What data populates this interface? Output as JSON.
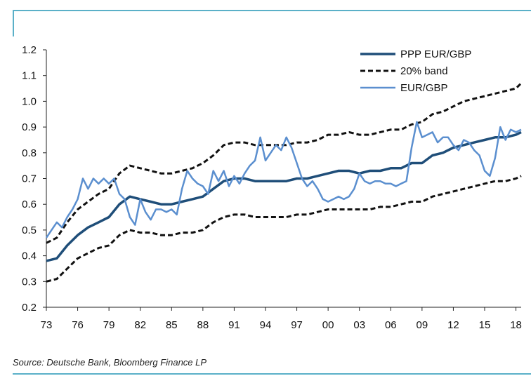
{
  "chart_data": {
    "type": "line",
    "title": "",
    "xlabel": "",
    "ylabel": "",
    "ylim": [
      0.2,
      1.2
    ],
    "xlim": [
      1973,
      2018.5
    ],
    "x_tick_labels": [
      "73",
      "76",
      "79",
      "82",
      "85",
      "88",
      "91",
      "94",
      "97",
      "00",
      "03",
      "06",
      "09",
      "12",
      "15",
      "18"
    ],
    "x_tick_values": [
      1973,
      1976,
      1979,
      1982,
      1985,
      1988,
      1991,
      1994,
      1997,
      2000,
      2003,
      2006,
      2009,
      2012,
      2015,
      2018
    ],
    "y_tick_labels": [
      "0.2",
      "0.3",
      "0.4",
      "0.5",
      "0.6",
      "0.7",
      "0.8",
      "0.9",
      "1.0",
      "1.1",
      "1.2"
    ],
    "y_tick_values": [
      0.2,
      0.3,
      0.4,
      0.5,
      0.6,
      0.7,
      0.8,
      0.9,
      1.0,
      1.1,
      1.2
    ],
    "legend_position": "top-right",
    "series": [
      {
        "name": "PPP EUR/GBP",
        "color": "#1f4e79",
        "style": "solid-thick",
        "x": [
          1973,
          1974,
          1975,
          1976,
          1977,
          1978,
          1979,
          1980,
          1981,
          1982,
          1983,
          1984,
          1985,
          1986,
          1987,
          1988,
          1989,
          1990,
          1991,
          1992,
          1993,
          1994,
          1995,
          1996,
          1997,
          1998,
          1999,
          2000,
          2001,
          2002,
          2003,
          2004,
          2005,
          2006,
          2007,
          2008,
          2009,
          2010,
          2011,
          2012,
          2013,
          2014,
          2015,
          2016,
          2017,
          2018,
          2018.5
        ],
        "values": [
          0.38,
          0.39,
          0.44,
          0.48,
          0.51,
          0.53,
          0.55,
          0.6,
          0.63,
          0.62,
          0.61,
          0.6,
          0.6,
          0.61,
          0.62,
          0.63,
          0.66,
          0.69,
          0.7,
          0.7,
          0.69,
          0.69,
          0.69,
          0.69,
          0.7,
          0.7,
          0.71,
          0.72,
          0.73,
          0.73,
          0.72,
          0.73,
          0.73,
          0.74,
          0.74,
          0.76,
          0.76,
          0.79,
          0.8,
          0.82,
          0.83,
          0.84,
          0.85,
          0.86,
          0.86,
          0.87,
          0.88
        ]
      },
      {
        "name": "20% band",
        "color": "#111111",
        "style": "dashed",
        "upper": {
          "x": [
            1973,
            1974,
            1975,
            1976,
            1977,
            1978,
            1979,
            1980,
            1981,
            1982,
            1983,
            1984,
            1985,
            1986,
            1987,
            1988,
            1989,
            1990,
            1991,
            1992,
            1993,
            1994,
            1995,
            1996,
            1997,
            1998,
            1999,
            2000,
            2001,
            2002,
            2003,
            2004,
            2005,
            2006,
            2007,
            2008,
            2009,
            2010,
            2011,
            2012,
            2013,
            2014,
            2015,
            2016,
            2017,
            2018,
            2018.5
          ],
          "values": [
            0.45,
            0.47,
            0.53,
            0.58,
            0.61,
            0.64,
            0.66,
            0.72,
            0.75,
            0.74,
            0.73,
            0.72,
            0.72,
            0.73,
            0.74,
            0.76,
            0.79,
            0.83,
            0.84,
            0.84,
            0.83,
            0.83,
            0.83,
            0.83,
            0.84,
            0.84,
            0.85,
            0.87,
            0.87,
            0.88,
            0.87,
            0.87,
            0.88,
            0.89,
            0.89,
            0.91,
            0.92,
            0.95,
            0.96,
            0.98,
            1.0,
            1.01,
            1.02,
            1.03,
            1.04,
            1.05,
            1.07
          ]
        },
        "lower": {
          "x": [
            1973,
            1974,
            1975,
            1976,
            1977,
            1978,
            1979,
            1980,
            1981,
            1982,
            1983,
            1984,
            1985,
            1986,
            1987,
            1988,
            1989,
            1990,
            1991,
            1992,
            1993,
            1994,
            1995,
            1996,
            1997,
            1998,
            1999,
            2000,
            2001,
            2002,
            2003,
            2004,
            2005,
            2006,
            2007,
            2008,
            2009,
            2010,
            2011,
            2012,
            2013,
            2014,
            2015,
            2016,
            2017,
            2018,
            2018.5
          ],
          "values": [
            0.3,
            0.31,
            0.35,
            0.39,
            0.41,
            0.43,
            0.44,
            0.48,
            0.5,
            0.49,
            0.49,
            0.48,
            0.48,
            0.49,
            0.49,
            0.5,
            0.53,
            0.55,
            0.56,
            0.56,
            0.55,
            0.55,
            0.55,
            0.55,
            0.56,
            0.56,
            0.57,
            0.58,
            0.58,
            0.58,
            0.58,
            0.58,
            0.59,
            0.59,
            0.6,
            0.61,
            0.61,
            0.63,
            0.64,
            0.65,
            0.66,
            0.67,
            0.68,
            0.69,
            0.69,
            0.7,
            0.71
          ]
        }
      },
      {
        "name": "EUR/GBP",
        "color": "#5b8fcf",
        "style": "solid",
        "x": [
          1973,
          1973.5,
          1974,
          1974.5,
          1975,
          1975.5,
          1976,
          1976.5,
          1977,
          1977.5,
          1978,
          1978.5,
          1979,
          1979.5,
          1980,
          1980.5,
          1981,
          1981.5,
          1982,
          1982.5,
          1983,
          1983.5,
          1984,
          1984.5,
          1985,
          1985.5,
          1986,
          1986.5,
          1987,
          1987.5,
          1988,
          1988.5,
          1989,
          1989.5,
          1990,
          1990.5,
          1991,
          1991.5,
          1992,
          1992.5,
          1993,
          1993.5,
          1994,
          1994.5,
          1995,
          1995.5,
          1996,
          1996.5,
          1997,
          1997.5,
          1998,
          1998.5,
          1999,
          1999.5,
          2000,
          2000.5,
          2001,
          2001.5,
          2002,
          2002.5,
          2003,
          2003.5,
          2004,
          2004.5,
          2005,
          2005.5,
          2006,
          2006.5,
          2007,
          2007.5,
          2008,
          2008.5,
          2009,
          2009.5,
          2010,
          2010.5,
          2011,
          2011.5,
          2012,
          2012.5,
          2013,
          2013.5,
          2014,
          2014.5,
          2015,
          2015.5,
          2016,
          2016.5,
          2017,
          2017.5,
          2018,
          2018.5
        ],
        "values": [
          0.47,
          0.5,
          0.53,
          0.51,
          0.55,
          0.58,
          0.62,
          0.7,
          0.66,
          0.7,
          0.68,
          0.7,
          0.68,
          0.7,
          0.64,
          0.62,
          0.55,
          0.52,
          0.62,
          0.57,
          0.54,
          0.58,
          0.58,
          0.57,
          0.58,
          0.56,
          0.66,
          0.73,
          0.7,
          0.68,
          0.67,
          0.64,
          0.73,
          0.69,
          0.73,
          0.67,
          0.71,
          0.68,
          0.72,
          0.75,
          0.77,
          0.86,
          0.77,
          0.8,
          0.83,
          0.81,
          0.86,
          0.82,
          0.76,
          0.7,
          0.67,
          0.69,
          0.66,
          0.62,
          0.61,
          0.62,
          0.63,
          0.62,
          0.63,
          0.66,
          0.72,
          0.69,
          0.68,
          0.69,
          0.69,
          0.68,
          0.68,
          0.67,
          0.68,
          0.69,
          0.82,
          0.92,
          0.86,
          0.87,
          0.88,
          0.84,
          0.86,
          0.86,
          0.83,
          0.81,
          0.85,
          0.84,
          0.81,
          0.79,
          0.73,
          0.71,
          0.78,
          0.9,
          0.85,
          0.89,
          0.88,
          0.89
        ]
      }
    ]
  },
  "source_text": "Source: Deutsche Bank, Bloomberg Finance LP"
}
